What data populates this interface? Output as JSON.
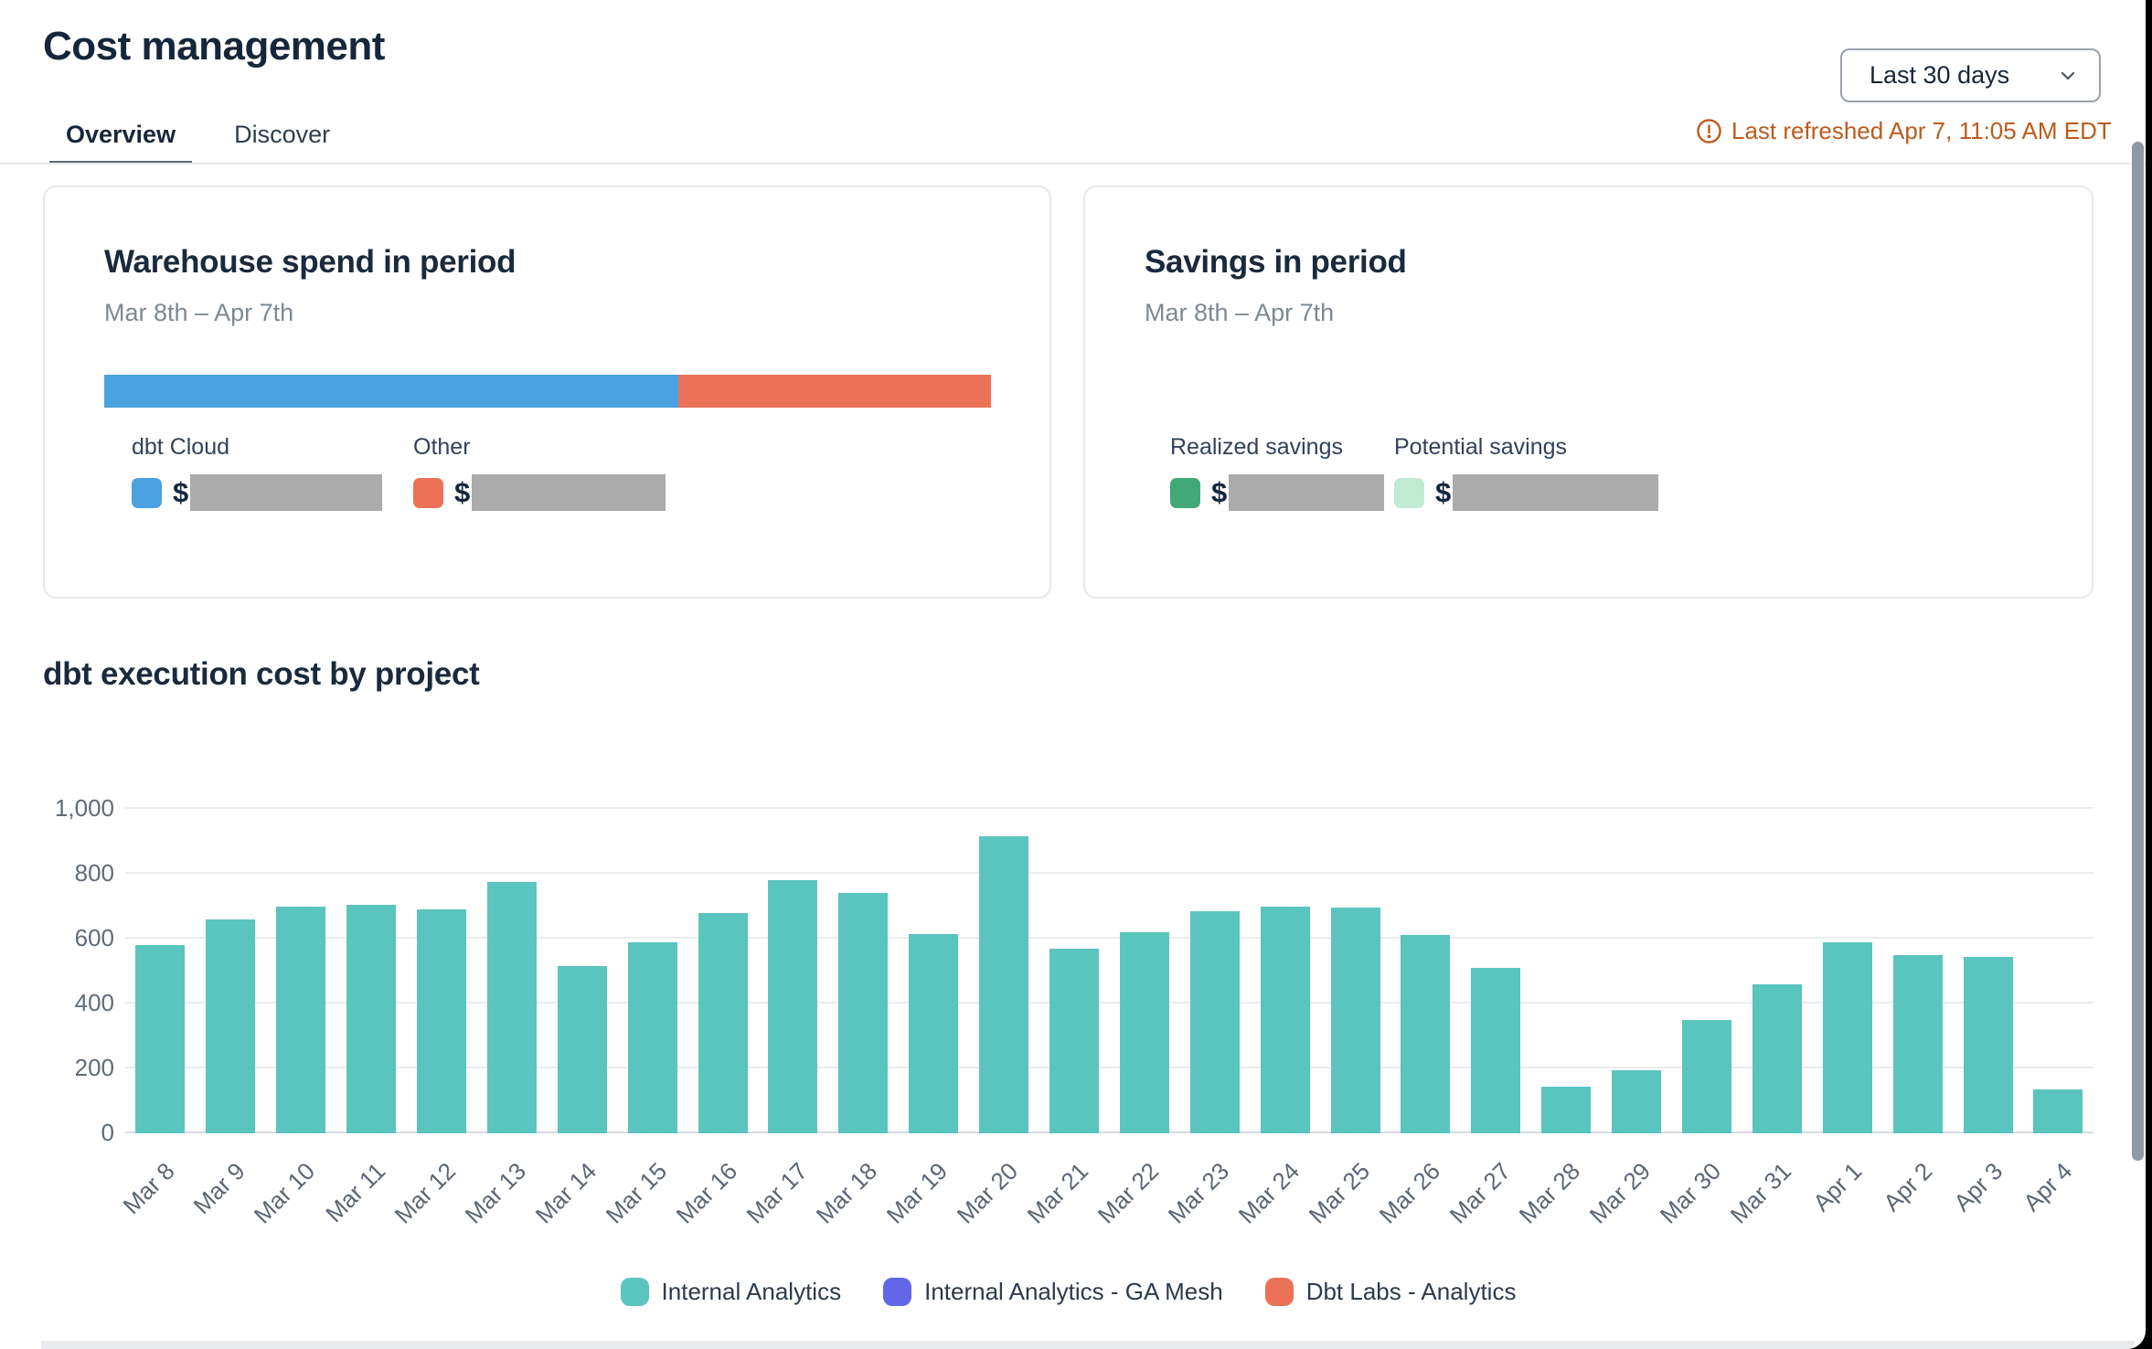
{
  "page": {
    "title": "Cost management",
    "tabs": [
      {
        "label": "Overview",
        "active": true
      },
      {
        "label": "Discover",
        "active": false
      }
    ],
    "period_selector": {
      "value": "Last 30 days",
      "icon": "chevron-down-icon"
    },
    "refresh_note": {
      "icon": "alert-circle-icon",
      "text": "Last refreshed Apr 7, 11:05 AM EDT",
      "color": "#bc5b1d"
    }
  },
  "cards": {
    "warehouse": {
      "title": "Warehouse spend in period",
      "period": "Mar 8th – Apr 7th",
      "currency_symbol": "$",
      "segments": [
        {
          "label": "dbt Cloud",
          "color": "#4aa3e0",
          "pct": 64.7,
          "value_redacted": true
        },
        {
          "label": "Other",
          "color": "#eb7257",
          "pct": 35.3,
          "value_redacted": true
        }
      ]
    },
    "savings": {
      "title": "Savings in period",
      "period": "Mar 8th – Apr 7th",
      "currency_symbol": "$",
      "items": [
        {
          "label": "Realized savings",
          "color": "#42a878",
          "value_redacted": true
        },
        {
          "label": "Potential savings",
          "color": "#c0ebd3",
          "value_redacted": true
        }
      ]
    }
  },
  "chart_section": {
    "title": "dbt execution cost by project"
  },
  "chart_data": {
    "type": "bar",
    "title": "dbt execution cost by project",
    "categories": [
      "Mar 8",
      "Mar 9",
      "Mar 10",
      "Mar 11",
      "Mar 12",
      "Mar 13",
      "Mar 14",
      "Mar 15",
      "Mar 16",
      "Mar 17",
      "Mar 18",
      "Mar 19",
      "Mar 20",
      "Mar 21",
      "Mar 22",
      "Mar 23",
      "Mar 24",
      "Mar 25",
      "Mar 26",
      "Mar 27",
      "Mar 28",
      "Mar 29",
      "Mar 30",
      "Mar 31",
      "Apr 1",
      "Apr 2",
      "Apr 3",
      "Apr 4"
    ],
    "series": [
      {
        "name": "Internal Analytics",
        "color": "#5ac4bf",
        "values": [
          580,
          660,
          700,
          705,
          690,
          775,
          515,
          590,
          680,
          780,
          740,
          615,
          915,
          570,
          620,
          685,
          700,
          695,
          610,
          510,
          145,
          195,
          350,
          460,
          590,
          550,
          545,
          135
        ]
      },
      {
        "name": "Internal Analytics - GA Mesh",
        "color": "#6366e9",
        "values": [
          0,
          0,
          0,
          0,
          0,
          0,
          0,
          0,
          0,
          0,
          0,
          0,
          0,
          0,
          0,
          0,
          0,
          0,
          0,
          0,
          0,
          0,
          0,
          0,
          0,
          0,
          0,
          0
        ]
      },
      {
        "name": "Dbt Labs - Analytics",
        "color": "#eb7257",
        "values": [
          0,
          0,
          0,
          0,
          0,
          0,
          0,
          0,
          0,
          0,
          0,
          0,
          0,
          0,
          0,
          0,
          0,
          0,
          0,
          0,
          0,
          0,
          0,
          0,
          0,
          0,
          0,
          0
        ]
      }
    ],
    "xlabel": "",
    "ylabel": "",
    "ylim": [
      0,
      1000
    ],
    "yticks": [
      {
        "value": 0,
        "label": "0"
      },
      {
        "value": 200,
        "label": "200"
      },
      {
        "value": 400,
        "label": "400"
      },
      {
        "value": 600,
        "label": "600"
      },
      {
        "value": 800,
        "label": "800"
      },
      {
        "value": 1000,
        "label": "1,000"
      }
    ],
    "grid": true,
    "legend_position": "bottom"
  }
}
